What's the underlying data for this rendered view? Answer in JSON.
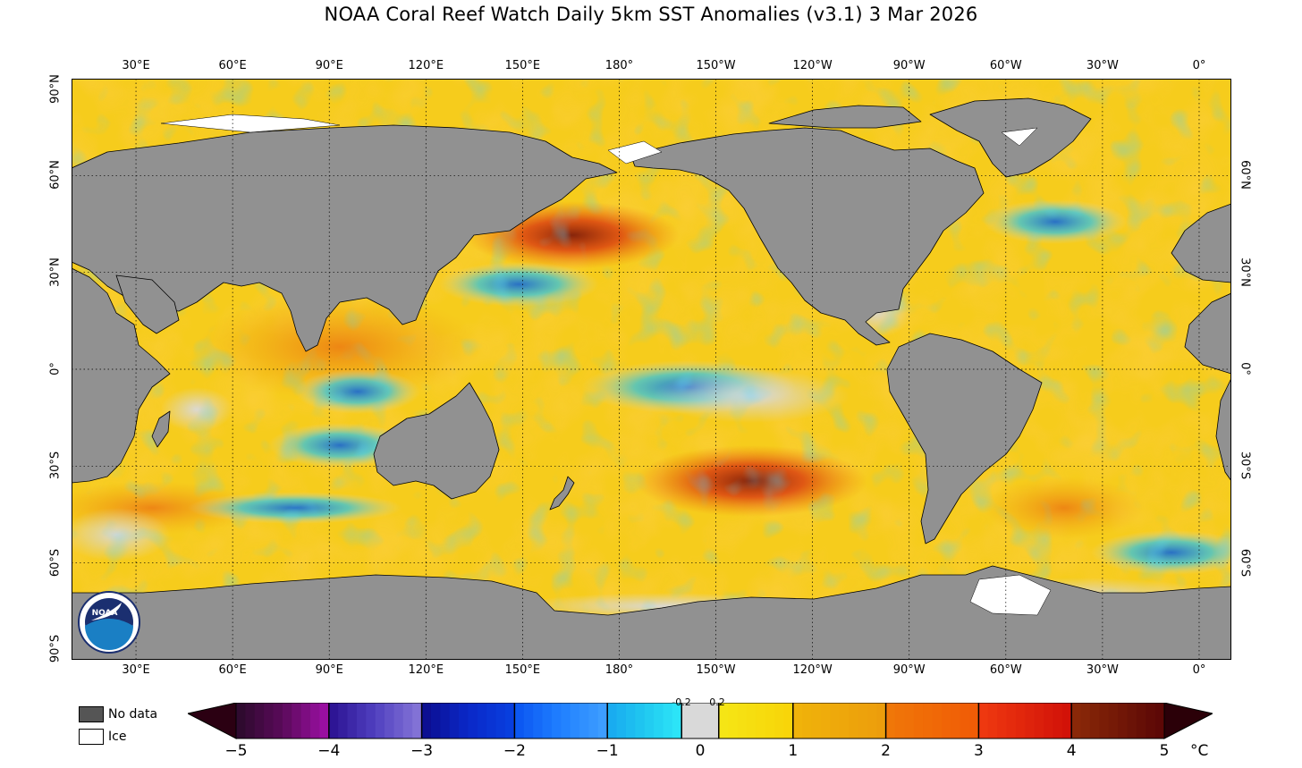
{
  "title": "NOAA Coral Reef Watch Daily 5km SST Anomalies  (v3.1)   3 Mar 2026",
  "longitude_labels": [
    "30°E",
    "60°E",
    "90°E",
    "120°E",
    "150°E",
    "180°",
    "150°W",
    "120°W",
    "90°W",
    "60°W",
    "30°W",
    "0°"
  ],
  "latitude_labels_left": [
    "90°N",
    "60°N",
    "30°N",
    "0°",
    "30°S",
    "60°S",
    "90°S"
  ],
  "latitude_labels_right": [
    "60°N",
    "30°N",
    "0°",
    "30°S",
    "60°S"
  ],
  "logo_text": "NOAA",
  "legend": {
    "no_data_label": "No data",
    "no_data_color": "#555555",
    "ice_label": "Ice",
    "ice_color": "#ffffff"
  },
  "colorbar": {
    "ticks": [
      "−5",
      "−4",
      "−3",
      "−2",
      "−1",
      "0",
      "1",
      "2",
      "3",
      "4",
      "5"
    ],
    "small_ticks": [
      "-0.2",
      "0.2"
    ],
    "unit": "°C"
  },
  "colors": {
    "land": "#919191",
    "neutral": "#d9d9d9",
    "ocean_warm": "#f5cb1a"
  }
}
